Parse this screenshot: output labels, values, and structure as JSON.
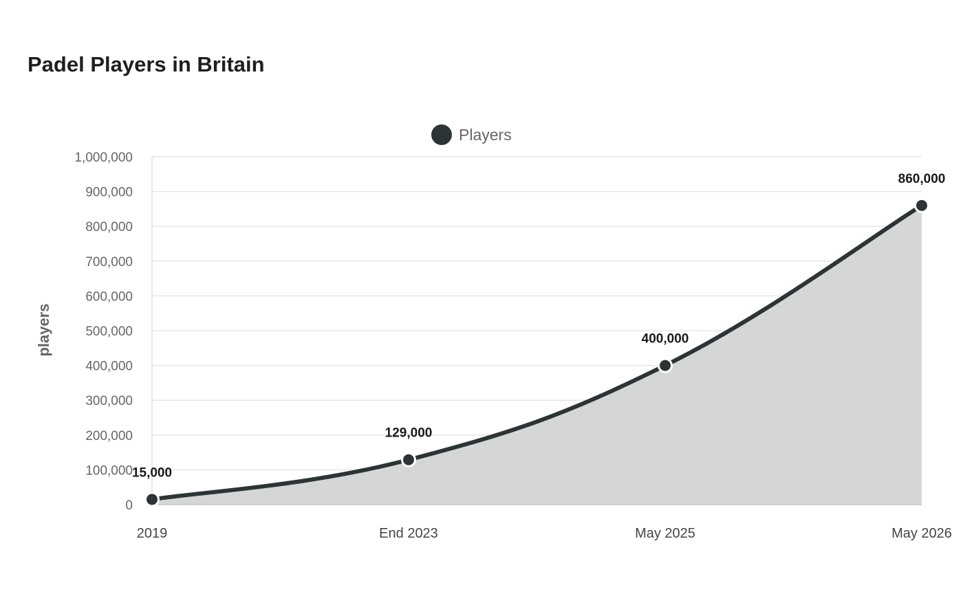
{
  "chart_data": {
    "type": "area",
    "title": "Padel Players in Britain",
    "categories": [
      "2019",
      "End 2023",
      "May 2025",
      "May 2026"
    ],
    "series": [
      {
        "name": "Players",
        "values": [
          15000,
          129000,
          400000,
          860000
        ],
        "labels": [
          "15,000",
          "129,000",
          "400,000",
          "860,000"
        ],
        "color": "#2d3436",
        "fill_color": "#d5d7d6"
      }
    ],
    "ylabel": "players",
    "xlabel": "",
    "ylim": [
      0,
      1000000
    ],
    "yticks": [
      0,
      100000,
      200000,
      300000,
      400000,
      500000,
      600000,
      700000,
      800000,
      900000,
      1000000
    ],
    "ytick_labels": [
      "0",
      "100,000",
      "200,000",
      "300,000",
      "400,000",
      "500,000",
      "600,000",
      "700,000",
      "800,000",
      "900,000",
      "1,000,000"
    ],
    "grid": true,
    "legend_position": "top-center"
  }
}
